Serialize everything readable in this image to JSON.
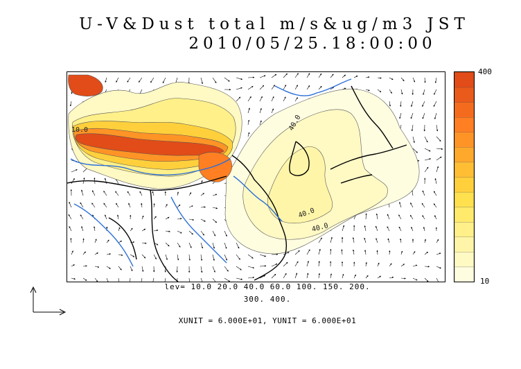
{
  "title": {
    "line1": "U-V&Dust total m/s&ug/m3 JST",
    "line2": "2010/05/25.18:00:00"
  },
  "map_labels": [
    "40.0",
    "10.0",
    "40.0",
    "40.0"
  ],
  "colorbar": {
    "max_label": "400",
    "min_label": "10",
    "colors": [
      "#fffde0",
      "#fff9c4",
      "#fff5a8",
      "#fff08a",
      "#ffea6c",
      "#ffe04e",
      "#ffd03c",
      "#ffbe34",
      "#ffa92c",
      "#ff9426",
      "#ff7f22",
      "#f56b1e",
      "#ea5a1a",
      "#e14c18"
    ]
  },
  "levels": {
    "line1": "lev= 10.0 20.0 40.0 60.0 100. 150. 200.",
    "line2": "300. 400."
  },
  "units_text": "XUNIT = 6.000E+01, YUNIT = 6.000E+01"
}
